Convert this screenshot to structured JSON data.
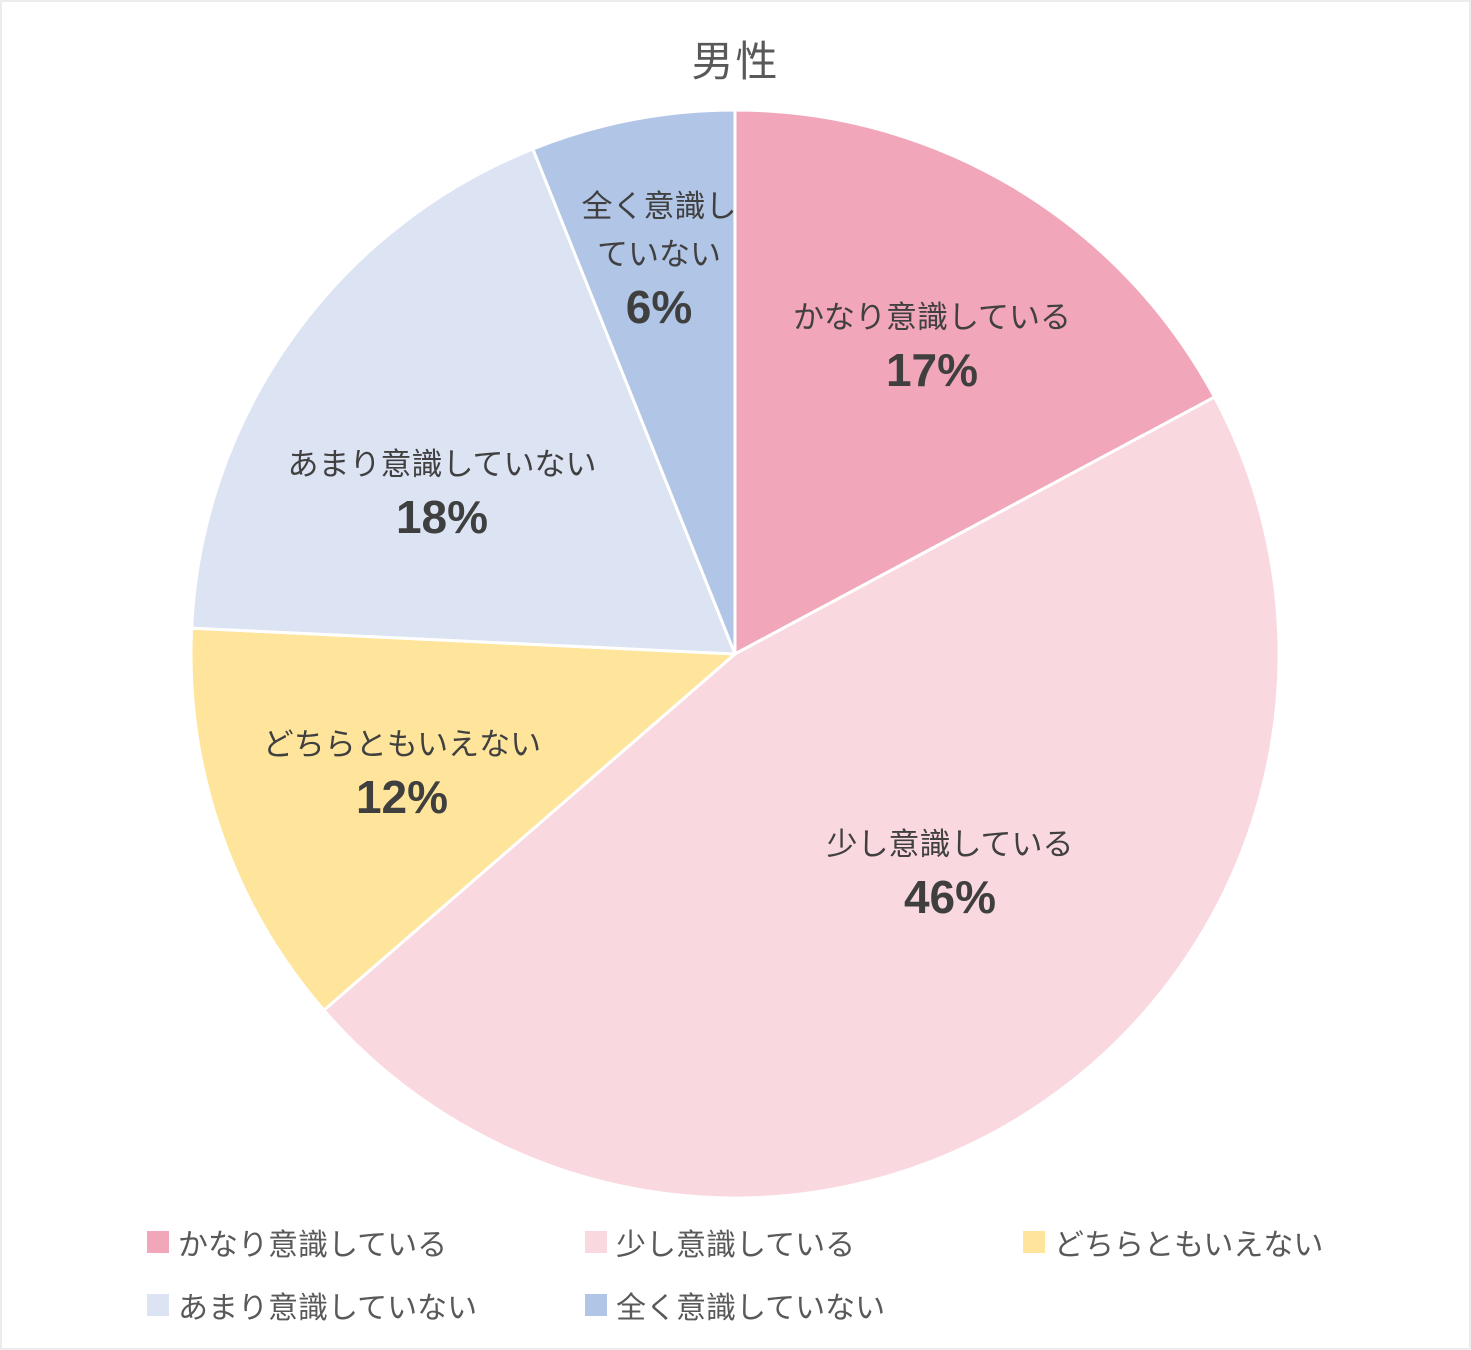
{
  "title": "男性",
  "chart_data": {
    "type": "pie",
    "title": "男性",
    "categories": [
      "かなり意識している",
      "少し意識している",
      "どちらともいえない",
      "あまり意識していない",
      "全く意識していない"
    ],
    "values": [
      17,
      46,
      12,
      18,
      6
    ],
    "labels": [
      "17%",
      "46%",
      "12%",
      "18%",
      "6%"
    ],
    "colors": [
      "#F2A6BA",
      "#FAD8E0",
      "#FFE59B",
      "#DCE4F3",
      "#B1C5E7"
    ],
    "slice_border_color": "#FFFFFF",
    "start_angle_deg": 0,
    "direction": "clockwise",
    "legend_position": "bottom",
    "title_color": "#595959",
    "label_color": "#404040"
  }
}
